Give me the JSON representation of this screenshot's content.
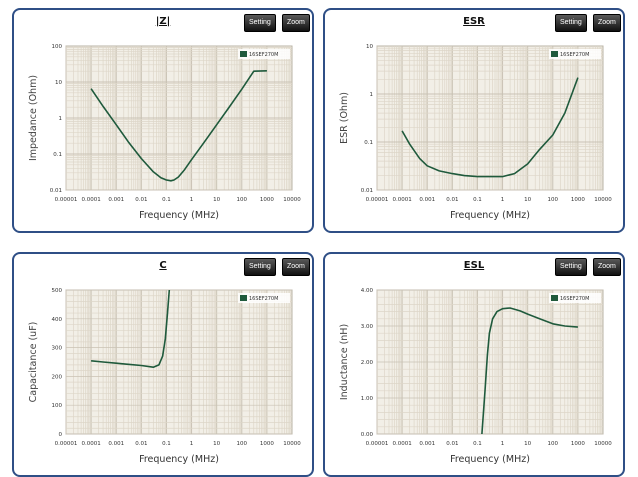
{
  "buttons": {
    "setting": "Setting",
    "zoom": "Zoom"
  },
  "colors": {
    "line": "#1f5a3c",
    "border": "#2f4f86",
    "plot_bg": "#f2efe7",
    "grid_minor": "#ddd6c8",
    "grid_major": "#c9c2b4"
  },
  "chart_data": [
    {
      "type": "line",
      "title": "|Z|",
      "xlabel": "Frequency (MHz)",
      "ylabel": "Impedance (Ohm)",
      "xscale": "log",
      "yscale": "log",
      "xlim": [
        1e-05,
        10000
      ],
      "ylim": [
        0.01,
        100
      ],
      "xticks": [
        "0.00001",
        "0.0001",
        "0.001",
        "0.01",
        "0.1",
        "1",
        "10",
        "100",
        "1000",
        "10000"
      ],
      "yticks": [
        "0.01",
        "0.1",
        "1",
        "10",
        "100"
      ],
      "legend": "top-right",
      "series": [
        {
          "name": "16SEF270M",
          "x": [
            0.0001,
            0.0003,
            0.001,
            0.003,
            0.01,
            0.03,
            0.06,
            0.1,
            0.15,
            0.2,
            0.3,
            0.5,
            1,
            3,
            10,
            30,
            100,
            300,
            1000
          ],
          "y": [
            6.5,
            2.1,
            0.65,
            0.22,
            0.075,
            0.032,
            0.022,
            0.019,
            0.018,
            0.019,
            0.023,
            0.035,
            0.07,
            0.2,
            0.65,
            1.9,
            6.3,
            20,
            20.5
          ]
        }
      ]
    },
    {
      "type": "line",
      "title": "ESR",
      "xlabel": "Frequency (MHz)",
      "ylabel": "ESR (Ohm)",
      "xscale": "log",
      "yscale": "log",
      "xlim": [
        1e-05,
        10000
      ],
      "ylim": [
        0.01,
        10
      ],
      "xticks": [
        "0.00001",
        "0.0001",
        "0.001",
        "0.01",
        "0.1",
        "1",
        "10",
        "100",
        "1000",
        "10000"
      ],
      "yticks": [
        "0.01",
        "0.1",
        "1",
        "10"
      ],
      "legend": "top-right",
      "series": [
        {
          "name": "16SEF270M",
          "x": [
            0.0001,
            0.0002,
            0.0005,
            0.001,
            0.003,
            0.01,
            0.03,
            0.1,
            0.3,
            1,
            3,
            10,
            30,
            100,
            300,
            1000
          ],
          "y": [
            0.17,
            0.09,
            0.045,
            0.032,
            0.025,
            0.022,
            0.02,
            0.019,
            0.019,
            0.019,
            0.022,
            0.035,
            0.07,
            0.14,
            0.4,
            2.2
          ]
        }
      ]
    },
    {
      "type": "line",
      "title": "C",
      "xlabel": "Frequency (MHz)",
      "ylabel": "Capacitance (uF)",
      "xscale": "log",
      "yscale": "linear",
      "xlim": [
        1e-05,
        10000
      ],
      "ylim": [
        0,
        500
      ],
      "xticks": [
        "0.00001",
        "0.0001",
        "0.001",
        "0.01",
        "0.1",
        "1",
        "10",
        "100",
        "1000",
        "10000"
      ],
      "yticks": [
        "0",
        "100",
        "200",
        "300",
        "400",
        "500"
      ],
      "legend": "top-right",
      "series": [
        {
          "name": "16SEF270M",
          "x": [
            0.0001,
            0.0003,
            0.001,
            0.003,
            0.01,
            0.03,
            0.05,
            0.07,
            0.09,
            0.11,
            0.13
          ],
          "y": [
            254,
            250,
            246,
            242,
            238,
            232,
            240,
            270,
            330,
            420,
            500
          ]
        }
      ]
    },
    {
      "type": "line",
      "title": "ESL",
      "xlabel": "Frequency (MHz)",
      "ylabel": "Inductance (nH)",
      "xscale": "log",
      "yscale": "linear",
      "xlim": [
        1e-05,
        10000
      ],
      "ylim": [
        0,
        4
      ],
      "xticks": [
        "0.00001",
        "0.0001",
        "0.001",
        "0.01",
        "0.1",
        "1",
        "10",
        "100",
        "1000",
        "10000"
      ],
      "yticks": [
        "0.00",
        "1.00",
        "2.00",
        "3.00",
        "4.00"
      ],
      "legend": "top-right",
      "series": [
        {
          "name": "16SEF270M",
          "x": [
            0.15,
            0.2,
            0.25,
            0.3,
            0.4,
            0.6,
            1,
            2,
            5,
            10,
            30,
            100,
            300,
            1000
          ],
          "y": [
            0,
            1.2,
            2.2,
            2.8,
            3.2,
            3.4,
            3.48,
            3.5,
            3.42,
            3.33,
            3.2,
            3.06,
            3.0,
            2.97
          ]
        }
      ]
    }
  ]
}
